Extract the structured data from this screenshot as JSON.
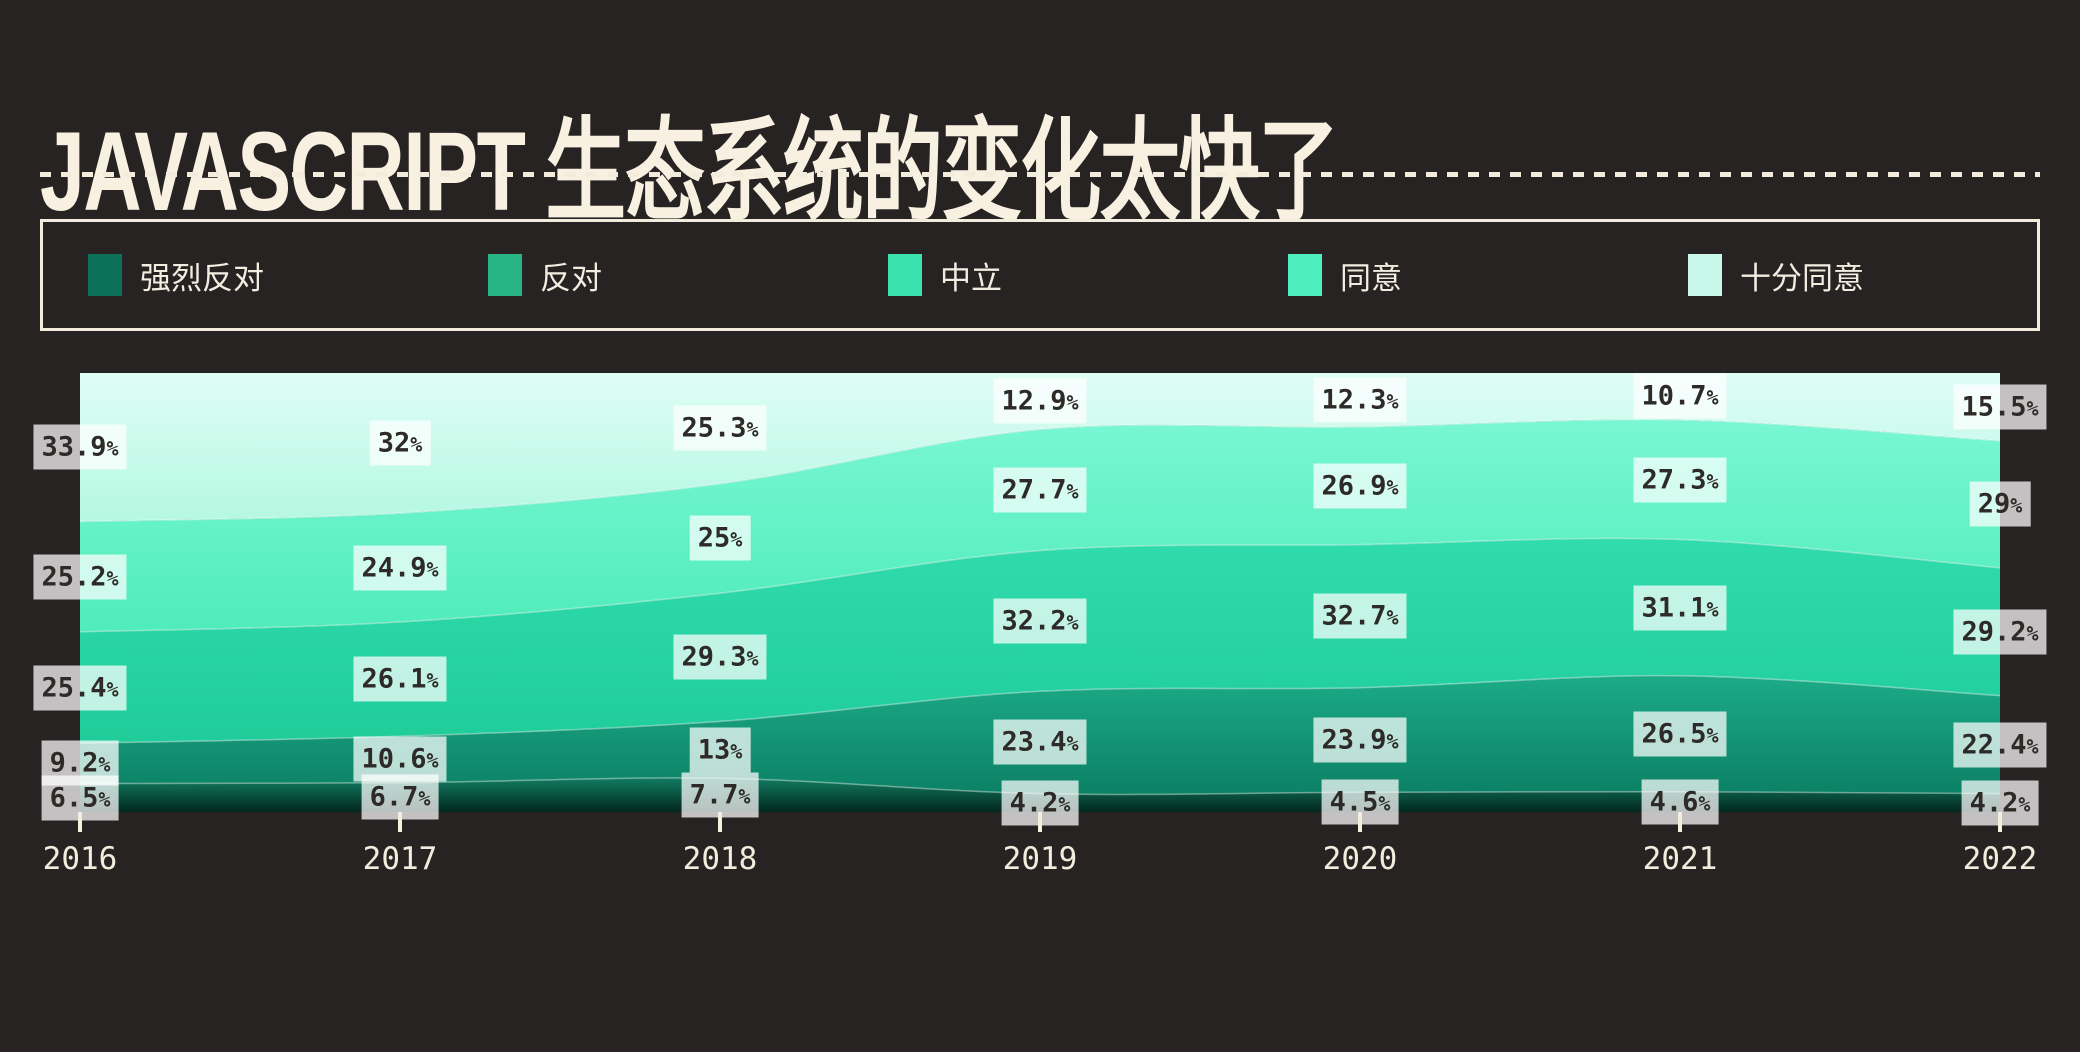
{
  "page": {
    "background": "#282323",
    "accent_cream": "#f3ecdd"
  },
  "header": {
    "title": "JAVASCRIPT 生态系统的变化太快了"
  },
  "legend": {
    "items": [
      {
        "id": "strongly-disagree",
        "label": "强烈反对",
        "color": "#0c7158"
      },
      {
        "id": "disagree",
        "label": "反对",
        "color": "#29b486"
      },
      {
        "id": "neutral",
        "label": "中立",
        "color": "#3ae2ae"
      },
      {
        "id": "agree",
        "label": "同意",
        "color": "#4feec0"
      },
      {
        "id": "strongly-agree",
        "label": "十分同意",
        "color": "#c9f7ea"
      }
    ]
  },
  "chart_data": {
    "type": "area",
    "stacked": true,
    "normalized_to_100": true,
    "title": "JAVASCRIPT 生态系统的变化太快了",
    "x": [
      2016,
      2017,
      2018,
      2019,
      2020,
      2021,
      2022
    ],
    "x_tick_labels": [
      "2016",
      "2017",
      "2018",
      "2019",
      "2020",
      "2021",
      "2022"
    ],
    "unit": "%",
    "legend_position": "top",
    "grid": false,
    "series": [
      {
        "id": "strongly-disagree",
        "name": "强烈反对",
        "values": [
          6.5,
          6.7,
          7.7,
          4.2,
          4.5,
          4.6,
          4.2
        ],
        "fill_top": "#117c60",
        "fill_bottom": "#03271f"
      },
      {
        "id": "disagree",
        "name": "反对",
        "values": [
          9.2,
          10.6,
          13,
          23.4,
          23.9,
          26.5,
          22.4
        ],
        "fill_top": "#1cab87",
        "fill_bottom": "#0c8165"
      },
      {
        "id": "neutral",
        "name": "中立",
        "values": [
          25.4,
          26.1,
          29.3,
          32.2,
          32.7,
          31.1,
          29.2
        ],
        "fill_top": "#31dcac",
        "fill_bottom": "#1fcc9a"
      },
      {
        "id": "agree",
        "name": "同意",
        "values": [
          25.2,
          24.9,
          25,
          27.7,
          26.9,
          27.3,
          29
        ],
        "fill_top": "#79f7d3",
        "fill_bottom": "#4fecba"
      },
      {
        "id": "strongly-agree",
        "name": "十分同意",
        "values": [
          33.9,
          32,
          25.3,
          12.9,
          12.3,
          10.7,
          15.5
        ],
        "fill_top": "#dffdf5",
        "fill_bottom": "#b5f8e2"
      }
    ],
    "value_label_style": {
      "bg": "rgba(255,255,255,0.72)",
      "text": "#2d2a27"
    },
    "boundary_line_color": "rgba(255,255,255,0.4)"
  }
}
